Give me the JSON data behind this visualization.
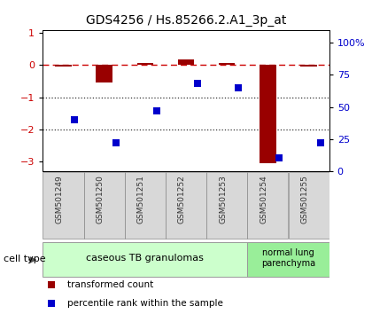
{
  "title": "GDS4256 / Hs.85266.2.A1_3p_at",
  "samples": [
    "GSM501249",
    "GSM501250",
    "GSM501251",
    "GSM501252",
    "GSM501253",
    "GSM501254",
    "GSM501255"
  ],
  "transformed_count": [
    -0.03,
    -0.55,
    0.07,
    0.17,
    0.07,
    -3.05,
    -0.03
  ],
  "percentile_rank": [
    40,
    22,
    47,
    68,
    65,
    10,
    22
  ],
  "ylim_left": [
    -3.3,
    1.1
  ],
  "ylim_right": [
    0,
    110
  ],
  "yticks_left": [
    -3,
    -2,
    -1,
    0,
    1
  ],
  "yticks_right": [
    0,
    25,
    50,
    75,
    100
  ],
  "ytick_labels_right": [
    "0",
    "25",
    "50",
    "75",
    "100%"
  ],
  "hline_y": 0,
  "dotted_lines": [
    -1,
    -2
  ],
  "bar_color": "#990000",
  "square_color": "#0000cc",
  "dashed_line_color": "#cc0000",
  "dotted_line_color": "#333333",
  "group1_label": "caseous TB granulomas",
  "group2_label": "normal lung\nparenchyma",
  "group1_indices": [
    0,
    1,
    2,
    3,
    4
  ],
  "group2_indices": [
    5,
    6
  ],
  "cell_type_label": "cell type",
  "legend_bar_label": "transformed count",
  "legend_square_label": "percentile rank within the sample",
  "group1_color": "#ccffcc",
  "group2_color": "#99ee99",
  "tick_label_color_left": "#cc0000",
  "tick_label_color_right": "#0000cc",
  "bar_width": 0.4,
  "sample_box_color": "#d8d8d8",
  "sample_box_edge": "#888888"
}
